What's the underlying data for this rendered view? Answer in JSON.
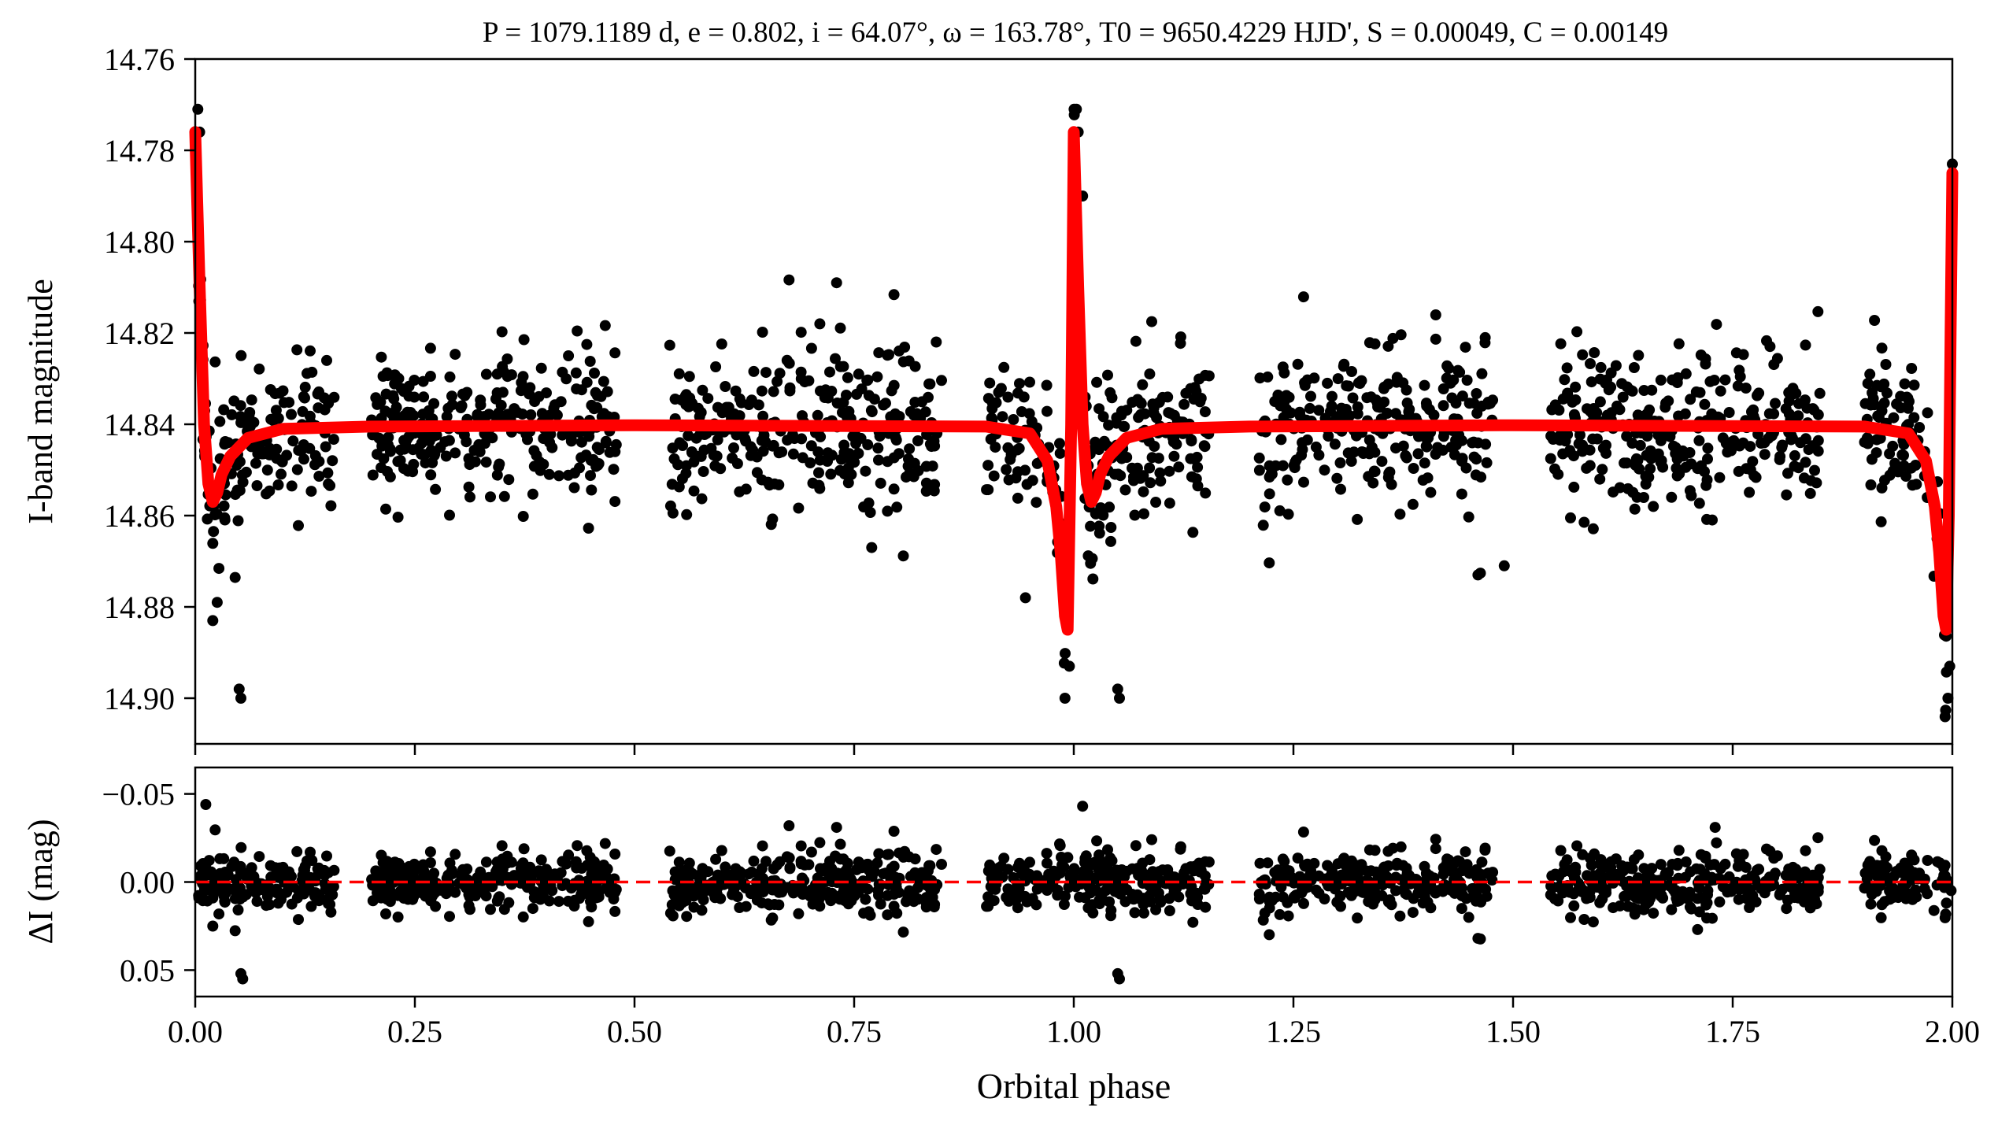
{
  "chart_data": {
    "type": "scatter",
    "title": "P = 1079.1189 d, e = 0.802, i = 64.07°, ω = 163.78°, T0 = 9650.4229 HJD', S = 0.00049, C = 0.00149",
    "xlabel": "Orbital phase",
    "xlim": [
      0.0,
      2.0
    ],
    "x_ticks": [
      "0.00",
      "0.25",
      "0.50",
      "0.75",
      "1.00",
      "1.25",
      "1.50",
      "1.75",
      "2.00"
    ],
    "point_color": "#000000",
    "model_color": "#ff0000",
    "panels": [
      {
        "name": "light-curve",
        "ylabel": "I-band magnitude",
        "ylim": [
          14.91,
          14.76
        ],
        "y_inverted": true,
        "y_ticks": [
          "14.76",
          "14.78",
          "14.80",
          "14.82",
          "14.84",
          "14.86",
          "14.88",
          "14.90"
        ],
        "baseline_mag": 14.84,
        "scatter_sigma_mag": 0.0085,
        "phase_gaps": [
          [
            0.16,
            0.2
          ],
          [
            0.48,
            0.54
          ],
          [
            0.85,
            0.9
          ],
          [
            1.16,
            1.21
          ],
          [
            1.48,
            1.54
          ],
          [
            1.85,
            1.9
          ]
        ],
        "model": {
          "name": "eclipse model",
          "x": [
            0.0,
            0.005,
            0.01,
            0.015,
            0.02,
            0.025,
            0.03,
            0.04,
            0.06,
            0.1,
            0.2,
            0.5,
            0.9,
            0.95,
            0.97,
            0.98,
            0.985,
            0.99,
            0.993,
            0.997,
            1.0,
            1.005,
            1.01,
            1.015,
            1.02,
            1.025,
            1.03,
            1.04,
            1.06,
            1.1,
            1.2,
            1.5,
            1.9,
            1.95,
            1.97,
            1.98,
            1.985,
            1.99,
            1.993,
            1.996,
            1.998,
            2.0
          ],
          "y": [
            14.776,
            14.81,
            14.84,
            14.853,
            14.857,
            14.855,
            14.851,
            14.847,
            14.843,
            14.841,
            14.8405,
            14.8402,
            14.8405,
            14.842,
            14.848,
            14.858,
            14.868,
            14.882,
            14.885,
            14.84,
            14.776,
            14.81,
            14.84,
            14.853,
            14.857,
            14.855,
            14.851,
            14.847,
            14.843,
            14.841,
            14.8405,
            14.8402,
            14.8405,
            14.842,
            14.848,
            14.858,
            14.868,
            14.882,
            14.885,
            14.86,
            14.82,
            14.785
          ]
        },
        "notable_points": {
          "x": [
            0.003,
            0.005,
            0.02,
            0.025,
            0.05,
            0.052,
            0.945,
            0.99,
            0.995,
            1.003,
            1.005,
            1.01,
            1.05,
            1.052,
            1.49,
            1.995,
            1.997,
            2.0,
            0.73,
            0.77,
            1.46
          ],
          "y": [
            14.771,
            14.776,
            14.883,
            14.879,
            14.898,
            14.9,
            14.878,
            14.9,
            14.893,
            14.771,
            14.776,
            14.79,
            14.898,
            14.9,
            14.871,
            14.9,
            14.893,
            14.783,
            14.809,
            14.867,
            14.873
          ]
        }
      },
      {
        "name": "residuals",
        "ylabel": "ΔI (mag)",
        "ylim": [
          0.065,
          -0.065
        ],
        "y_inverted": true,
        "y_ticks": [
          "−0.05",
          "0.00",
          "0.05"
        ],
        "zero_line": {
          "y": 0.0,
          "style": "dashed",
          "color": "#ff0000"
        },
        "scatter_sigma_mag": 0.0085,
        "notable_points": {
          "x": [
            0.012,
            0.052,
            0.054,
            1.01,
            1.05,
            1.052,
            1.46,
            0.73,
            1.73,
            1.71,
            0.02
          ],
          "y": [
            -0.044,
            0.052,
            0.055,
            -0.043,
            0.052,
            0.055,
            0.032,
            -0.031,
            -0.031,
            0.027,
            0.025
          ]
        }
      }
    ]
  }
}
